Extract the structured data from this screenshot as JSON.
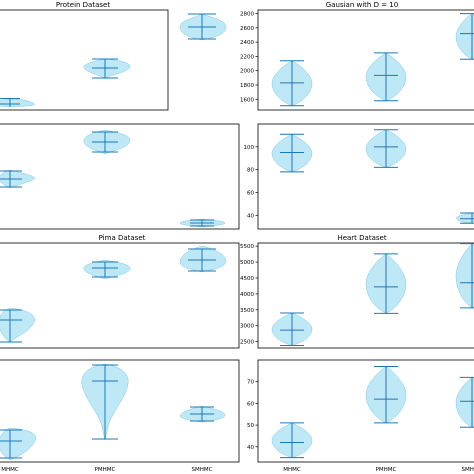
{
  "chart_data": [
    {
      "type": "violin",
      "title": "Protein Dataset",
      "ylim": [
        null,
        null
      ],
      "yticks": [],
      "categories": [],
      "violins": []
    },
    {
      "type": "violin",
      "title": "Gausian with D = 10",
      "ylim": [
        1450,
        2850
      ],
      "yticks": [
        1600,
        1800,
        2000,
        2200,
        2400,
        2600,
        2800
      ],
      "categories": [],
      "violins": [
        {
          "min": 1510,
          "median": 1830,
          "max": 2140
        },
        {
          "min": 1580,
          "median": 1935,
          "max": 2250
        },
        {
          "min": 2160,
          "median": 2520,
          "max": 2800
        }
      ]
    },
    {
      "type": "violin",
      "title": "",
      "ylim": [
        null,
        null
      ],
      "yticks": [],
      "categories": [],
      "violins": []
    },
    {
      "type": "violin",
      "title": "",
      "ylim": [
        28,
        120
      ],
      "yticks": [
        40,
        60,
        80,
        100
      ],
      "categories": [],
      "violins": [
        {
          "min": 78,
          "median": 95,
          "max": 111
        },
        {
          "min": 82,
          "median": 100,
          "max": 115
        },
        {
          "min": 33,
          "median": 37,
          "max": 42
        }
      ]
    },
    {
      "type": "violin",
      "title": "Pima Dataset",
      "ylim": [
        null,
        null
      ],
      "yticks": [],
      "categories": [],
      "violins": []
    },
    {
      "type": "violin",
      "title": "Heart Dataset",
      "ylim": [
        2300,
        5600
      ],
      "yticks": [
        2500,
        3000,
        3500,
        4000,
        4500,
        5000,
        5500
      ],
      "categories": [],
      "violins": [
        {
          "min": 2380,
          "median": 2860,
          "max": 3400
        },
        {
          "min": 3390,
          "median": 4220,
          "max": 5260
        },
        {
          "min": 3560,
          "median": 4350,
          "max": 5580
        }
      ]
    },
    {
      "type": "violin",
      "title": "",
      "ylim": [
        null,
        null
      ],
      "yticks": [],
      "categories": [
        "MHMC",
        "PMHMC",
        "SMHMC"
      ],
      "violins": []
    },
    {
      "type": "violin",
      "title": "",
      "ylim": [
        33,
        80
      ],
      "yticks": [
        40,
        50,
        60,
        70
      ],
      "categories": [
        "MHMC",
        "PMHMC",
        "SMHMC"
      ],
      "violins": [
        {
          "min": 35,
          "median": 42,
          "max": 51
        },
        {
          "min": 51,
          "median": 62,
          "max": 77
        },
        {
          "min": 49,
          "median": 61,
          "max": 72
        }
      ]
    }
  ]
}
